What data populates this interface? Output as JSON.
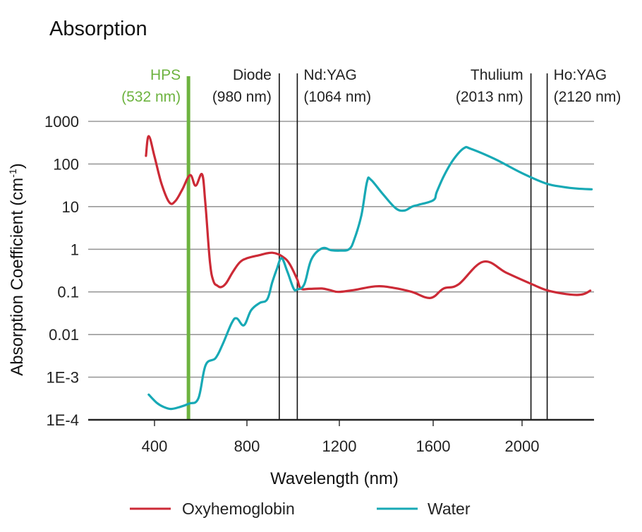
{
  "chart_data": {
    "type": "line",
    "title": "Absorption",
    "xlabel": "Wavelength (nm)",
    "ylabel": "Absorption Coefficient (cm",
    "ylabel_superscript": "-1",
    "ylabel_suffix": ")",
    "yscale": "log",
    "ylim": [
      0.0001,
      1000
    ],
    "xlim": [
      120,
      2330
    ],
    "grid": true,
    "legend_position": "bottom",
    "x_ticks": [
      400,
      800,
      1200,
      1600,
      2000
    ],
    "x_tick_labels": [
      "400",
      "800",
      "1200",
      "1600",
      "2000"
    ],
    "y_ticks": [
      1000,
      100,
      10,
      1,
      0.1,
      0.01,
      0.001,
      0.0001
    ],
    "y_tick_labels": [
      "1000",
      "100",
      "10",
      "1",
      "0.1",
      "0.01",
      "1E-3",
      "1E-4"
    ],
    "annotations": [
      {
        "name": "HPS",
        "label_line1": "HPS",
        "label_line2": "(532 nm)",
        "x": 547,
        "color": "#6db33f",
        "align": "right"
      },
      {
        "name": "Diode",
        "label_line1": "Diode",
        "label_line2": "(980 nm)",
        "x": 940,
        "color": "#111111",
        "align": "right"
      },
      {
        "name": "Nd:YAG",
        "label_line1": "Nd:YAG",
        "label_line2": "(1064 nm)",
        "x": 1018,
        "color": "#111111",
        "align": "left"
      },
      {
        "name": "Thulium",
        "label_line1": "Thulium",
        "label_line2": "(2013 nm)",
        "x": 2040,
        "color": "#111111",
        "align": "right"
      },
      {
        "name": "Ho:YAG",
        "label_line1": "Ho:YAG",
        "label_line2": "(2120 nm)",
        "x": 2113,
        "color": "#111111",
        "align": "left"
      }
    ],
    "series": [
      {
        "name": "Oxyhemoglobin",
        "color": "#cc2a36",
        "x": [
          363,
          375,
          400,
          430,
          464,
          490,
          520,
          554,
          578,
          606,
          620,
          640,
          655,
          672,
          689,
          710,
          740,
          770,
          802,
          850,
          910,
          956,
          985,
          1017,
          1033,
          1070,
          1125,
          1160,
          1195,
          1260,
          1355,
          1430,
          1509,
          1588,
          1647,
          1714,
          1825,
          1930,
          2040,
          2110,
          2180,
          2245,
          2280,
          2307
        ],
        "y": [
          155,
          450,
          150,
          35,
          12.6,
          13.5,
          25,
          55,
          31,
          57,
          12,
          0.5,
          0.18,
          0.14,
          0.13,
          0.16,
          0.3,
          0.5,
          0.62,
          0.72,
          0.83,
          0.66,
          0.45,
          0.2,
          0.12,
          0.118,
          0.12,
          0.11,
          0.1,
          0.11,
          0.135,
          0.125,
          0.1,
          0.072,
          0.12,
          0.15,
          0.51,
          0.28,
          0.155,
          0.11,
          0.092,
          0.085,
          0.09,
          0.107
        ]
      },
      {
        "name": "Water",
        "color": "#17a9b5",
        "x": [
          375,
          410,
          440,
          471,
          510,
          550,
          590,
          621,
          664,
          695,
          735,
          756,
          787,
          818,
          855,
          888,
          910,
          930,
          950,
          975,
          1002,
          1017,
          1048,
          1079,
          1125,
          1165,
          1202,
          1241,
          1263,
          1294,
          1318,
          1334,
          1386,
          1441,
          1478,
          1510,
          1539,
          1601,
          1616,
          1650,
          1693,
          1739,
          1770,
          1877,
          2000,
          2107,
          2184,
          2250,
          2313
        ],
        "y": [
          0.00039,
          0.00025,
          0.0002,
          0.00018,
          0.0002,
          0.00024,
          0.00032,
          0.0019,
          0.0028,
          0.0059,
          0.019,
          0.024,
          0.0165,
          0.037,
          0.055,
          0.067,
          0.17,
          0.35,
          0.62,
          0.3,
          0.12,
          0.114,
          0.15,
          0.58,
          1.05,
          0.95,
          0.93,
          1.0,
          1.66,
          6.3,
          38,
          43,
          19.6,
          9.1,
          8.1,
          10,
          11.1,
          14.2,
          22,
          55,
          131,
          236,
          226,
          131,
          61,
          35,
          29,
          26.5,
          25.5
        ]
      }
    ]
  }
}
